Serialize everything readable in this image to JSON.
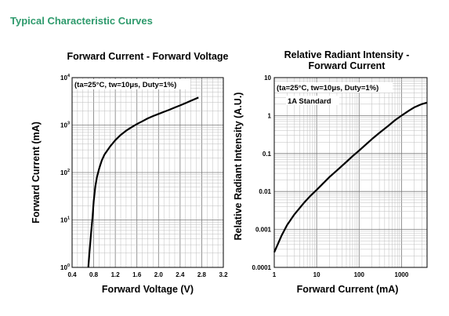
{
  "section_title": "Typical Characteristic Curves",
  "chart_data": [
    {
      "type": "line",
      "title": "Forward Current - Forward Voltage",
      "xlabel": "Forward Voltage (V)",
      "ylabel": "Forward Current (mA)",
      "annotation": "(ta=25°C, tw=10μs, Duty=1%)",
      "x_scale": "linear",
      "y_scale": "log",
      "xlim": [
        0.4,
        3.2
      ],
      "ylim": [
        1,
        10000
      ],
      "grid": true,
      "x_ticks": [
        {
          "value": 0.4,
          "label": "0.4"
        },
        {
          "value": 0.8,
          "label": "0.8"
        },
        {
          "value": 1.2,
          "label": "1.2"
        },
        {
          "value": 1.6,
          "label": "1.6"
        },
        {
          "value": 2.0,
          "label": "2.0"
        },
        {
          "value": 2.4,
          "label": "2.4"
        },
        {
          "value": 2.8,
          "label": "2.8"
        },
        {
          "value": 3.2,
          "label": "3.2"
        }
      ],
      "y_ticks": [
        {
          "value": 1,
          "base": "10",
          "exp": "0"
        },
        {
          "value": 10,
          "base": "10",
          "exp": "1"
        },
        {
          "value": 100,
          "base": "10",
          "exp": "2"
        },
        {
          "value": 1000,
          "base": "10",
          "exp": "3"
        },
        {
          "value": 10000,
          "base": "10",
          "exp": "4"
        }
      ],
      "series": [
        {
          "x": [
            0.7,
            0.72,
            0.75,
            0.78,
            0.8,
            0.83,
            0.86,
            0.9,
            0.95,
            1.0,
            1.1,
            1.2,
            1.3,
            1.4,
            1.5,
            1.6,
            1.7,
            1.8,
            1.9,
            2.0,
            2.1,
            2.2,
            2.3,
            2.4,
            2.5,
            2.6,
            2.74
          ],
          "y": [
            1,
            2,
            5,
            12,
            25,
            50,
            80,
            120,
            180,
            240,
            350,
            480,
            620,
            760,
            900,
            1050,
            1200,
            1380,
            1550,
            1720,
            1900,
            2100,
            2350,
            2600,
            2900,
            3250,
            3800
          ]
        }
      ]
    },
    {
      "type": "line",
      "title": "Relative Radiant Intensity -\nForward Current",
      "xlabel": "Forward Current (mA)",
      "ylabel": "Relative Radiant Intensity (A.U.)",
      "annotation": "(ta=25°C, tw=10μs, Duty=1%)",
      "annotation2": "1A Standard",
      "x_scale": "log",
      "y_scale": "log",
      "xlim": [
        1,
        4000
      ],
      "ylim": [
        0.0001,
        10
      ],
      "grid": true,
      "x_ticks": [
        {
          "value": 1,
          "label": "1"
        },
        {
          "value": 10,
          "label": "10"
        },
        {
          "value": 100,
          "label": "100"
        },
        {
          "value": 1000,
          "label": "1000"
        }
      ],
      "y_ticks": [
        {
          "value": 0.0001,
          "label": "0.0001"
        },
        {
          "value": 0.001,
          "label": "0.001"
        },
        {
          "value": 0.01,
          "label": "0.01"
        },
        {
          "value": 0.1,
          "label": "0.1"
        },
        {
          "value": 1,
          "label": "1"
        },
        {
          "value": 10,
          "label": "10"
        }
      ],
      "series": [
        {
          "x": [
            1,
            1.2,
            1.5,
            2,
            3,
            5,
            7,
            10,
            20,
            30,
            50,
            70,
            100,
            200,
            300,
            500,
            700,
            1000,
            1500,
            2000,
            3000,
            4000
          ],
          "y": [
            0.00025,
            0.0004,
            0.0007,
            0.0013,
            0.0025,
            0.005,
            0.0075,
            0.011,
            0.024,
            0.036,
            0.06,
            0.085,
            0.12,
            0.24,
            0.35,
            0.55,
            0.75,
            1.0,
            1.35,
            1.65,
            2.0,
            2.2
          ]
        }
      ]
    }
  ]
}
